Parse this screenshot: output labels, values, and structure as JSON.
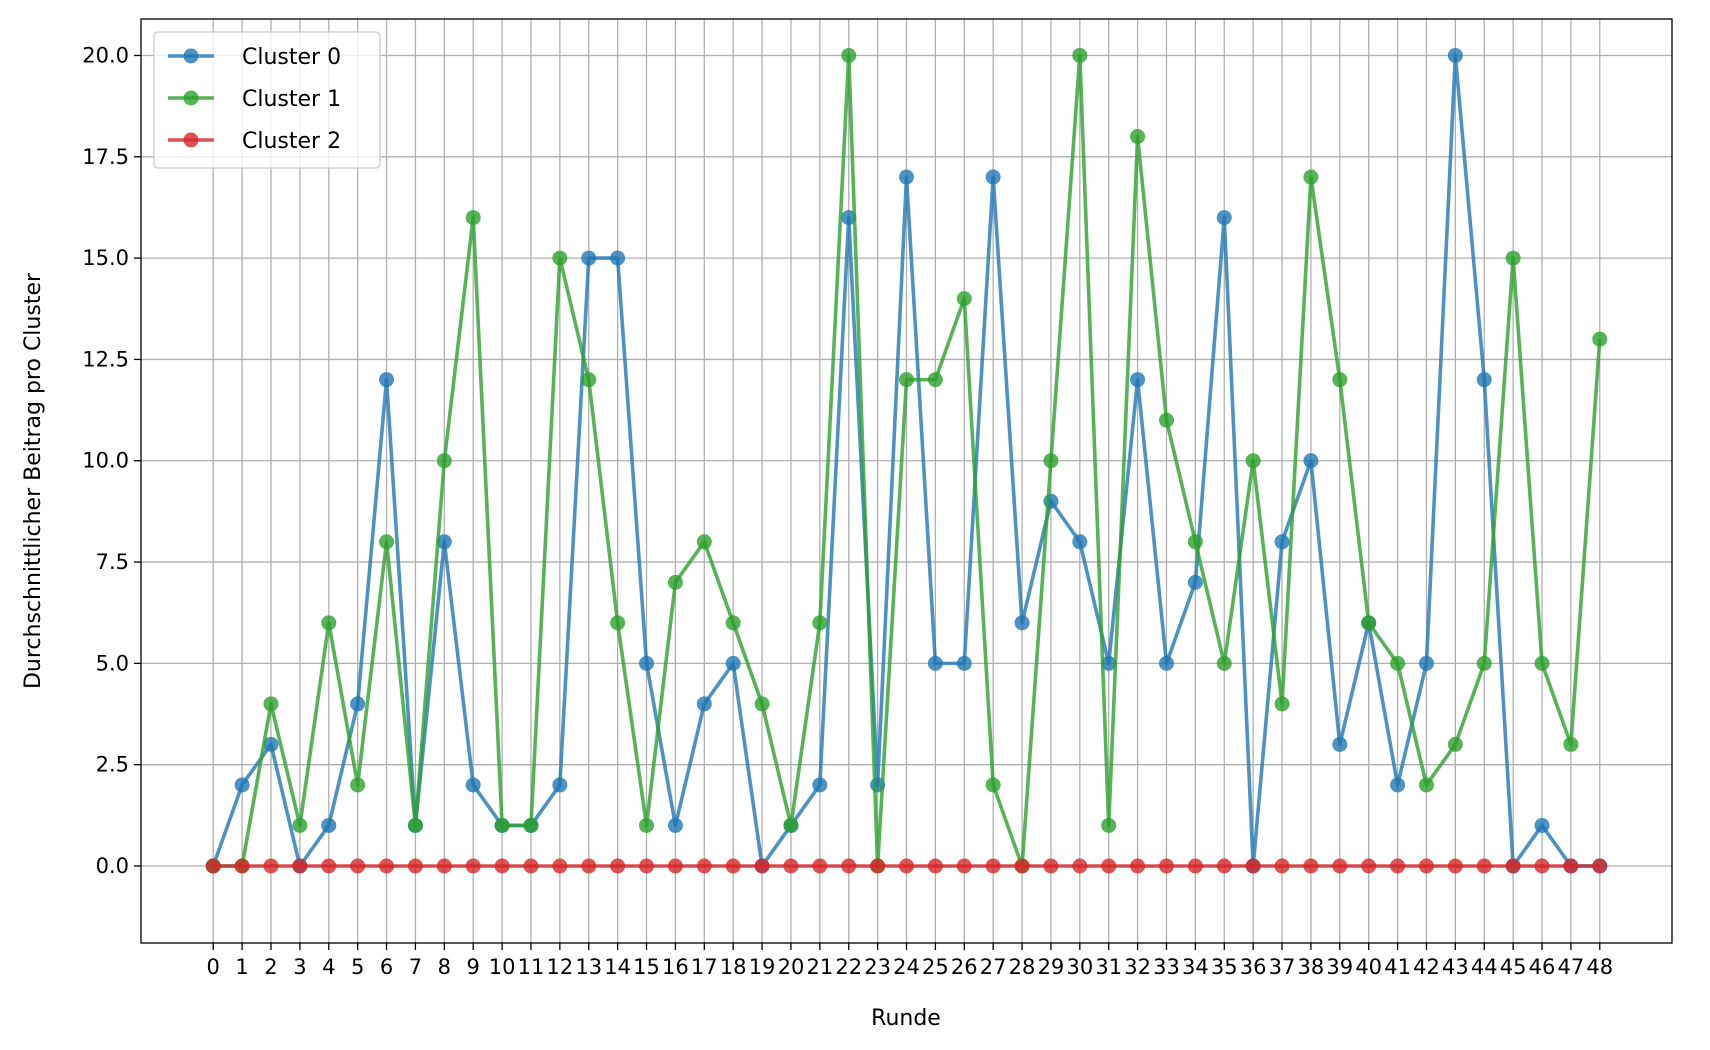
{
  "chart_data": {
    "type": "line",
    "title": "",
    "xlabel": "Runde",
    "ylabel": "Durchschnittlicher Beitrag pro Cluster",
    "x": [
      0,
      1,
      2,
      3,
      4,
      5,
      6,
      7,
      8,
      9,
      10,
      11,
      12,
      13,
      14,
      15,
      16,
      17,
      18,
      19,
      20,
      21,
      22,
      23,
      24,
      25,
      26,
      27,
      28,
      29,
      30,
      31,
      32,
      33,
      34,
      35,
      36,
      37,
      38,
      39,
      40,
      41,
      42,
      43,
      44,
      45,
      46,
      47,
      48
    ],
    "xlim": [
      -2.5,
      50.5
    ],
    "ylim": [
      -1.9,
      20.9
    ],
    "yticks": [
      0.0,
      2.5,
      5.0,
      7.5,
      10.0,
      12.5,
      15.0,
      17.5,
      20.0
    ],
    "ytick_labels": [
      "0.0",
      "2.5",
      "5.0",
      "7.5",
      "10.0",
      "12.5",
      "15.0",
      "17.5",
      "20.0"
    ],
    "grid": true,
    "legend_position": "top-left",
    "series": [
      {
        "name": "Cluster 0",
        "color": "#1f77b4",
        "values": [
          0,
          2,
          3,
          0,
          1,
          4,
          12,
          1,
          8,
          2,
          1,
          1,
          2,
          15,
          15,
          5,
          1,
          4,
          5,
          0,
          1,
          2,
          16,
          2,
          17,
          5,
          5,
          17,
          6,
          9,
          8,
          5,
          12,
          5,
          7,
          16,
          0,
          8,
          10,
          3,
          6,
          2,
          5,
          20,
          12,
          0,
          1,
          0,
          0
        ]
      },
      {
        "name": "Cluster 1",
        "color": "#2ca02c",
        "values": [
          0,
          0,
          4,
          1,
          6,
          2,
          8,
          1,
          10,
          16,
          1,
          1,
          15,
          12,
          6,
          1,
          7,
          8,
          6,
          4,
          1,
          6,
          20,
          0,
          12,
          12,
          14,
          2,
          0,
          10,
          20,
          1,
          18,
          11,
          8,
          5,
          10,
          4,
          17,
          12,
          6,
          5,
          2,
          3,
          5,
          15,
          5,
          3,
          13
        ]
      },
      {
        "name": "Cluster 2",
        "color": "#d62728",
        "values": [
          0,
          0,
          0,
          0,
          0,
          0,
          0,
          0,
          0,
          0,
          0,
          0,
          0,
          0,
          0,
          0,
          0,
          0,
          0,
          0,
          0,
          0,
          0,
          0,
          0,
          0,
          0,
          0,
          0,
          0,
          0,
          0,
          0,
          0,
          0,
          0,
          0,
          0,
          0,
          0,
          0,
          0,
          0,
          0,
          0,
          0,
          0,
          0,
          0
        ]
      }
    ]
  }
}
